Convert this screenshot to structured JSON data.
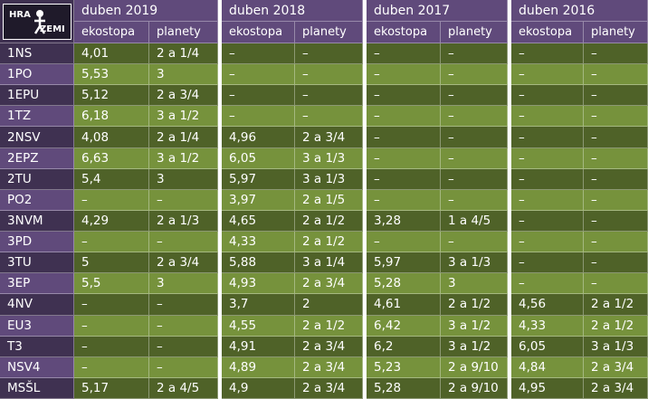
{
  "logo": {
    "top": "HRA",
    "bottom": "ZEMI"
  },
  "table": {
    "groups": [
      {
        "title": "duben 2019",
        "columns": [
          "ekostopa",
          "planety"
        ]
      },
      {
        "title": "duben 2018",
        "columns": [
          "ekostopa",
          "planety"
        ]
      },
      {
        "title": "duben 2017",
        "columns": [
          "ekostopa",
          "planety"
        ]
      },
      {
        "title": "duben 2016",
        "columns": [
          "ekostopa",
          "planety"
        ]
      }
    ],
    "rows": [
      {
        "label": "1NS",
        "cells": [
          "4,01",
          "2 a 1/4",
          "–",
          "–",
          "–",
          "–",
          "–",
          "–"
        ]
      },
      {
        "label": "1PO",
        "cells": [
          "5,53",
          "3",
          "–",
          "–",
          "–",
          "–",
          "–",
          "–"
        ]
      },
      {
        "label": "1EPU",
        "cells": [
          "5,12",
          "2 a 3/4",
          "–",
          "–",
          "–",
          "–",
          "–",
          "–"
        ]
      },
      {
        "label": "1TZ",
        "cells": [
          "6,18",
          "3 a 1/2",
          "–",
          "–",
          "–",
          "–",
          "–",
          "–"
        ]
      },
      {
        "label": "2NSV",
        "cells": [
          "4,08",
          "2 a 1/4",
          "4,96",
          "2 a 3/4",
          "–",
          "–",
          "–",
          "–"
        ]
      },
      {
        "label": "2EPZ",
        "cells": [
          "6,63",
          "3 a 1/2",
          "6,05",
          "3 a 1/3",
          "–",
          "–",
          "–",
          "–"
        ]
      },
      {
        "label": "2TU",
        "cells": [
          "5,4",
          "3",
          "5,97",
          "3 a 1/3",
          "–",
          "–",
          "–",
          "–"
        ]
      },
      {
        "label": "PO2",
        "cells": [
          "–",
          "–",
          "3,97",
          "2 a 1/5",
          "–",
          "–",
          "–",
          "–"
        ]
      },
      {
        "label": "3NVM",
        "cells": [
          "4,29",
          "2 a 1/3",
          "4,65",
          "2 a 1/2",
          "3,28",
          "1 a 4/5",
          "–",
          "–"
        ]
      },
      {
        "label": "3PD",
        "cells": [
          "–",
          "–",
          "4,33",
          "2 a 1/2",
          "–",
          "–",
          "–",
          "–"
        ]
      },
      {
        "label": "3TU",
        "cells": [
          "5",
          "2 a 3/4",
          "5,88",
          "3 a 1/4",
          "5,97",
          "3 a 1/3",
          "–",
          "–"
        ]
      },
      {
        "label": "3EP",
        "cells": [
          "5,5",
          "3",
          "4,93",
          "2 a 3/4",
          "5,28",
          "3",
          "–",
          "–"
        ]
      },
      {
        "label": "4NV",
        "cells": [
          "–",
          "–",
          "3,7",
          "2",
          "4,61",
          "2 a 1/2",
          "4,56",
          "2 a 1/2"
        ]
      },
      {
        "label": "EU3",
        "cells": [
          "–",
          "–",
          "4,55",
          "2 a 1/2",
          "6,42",
          "3 a 1/2",
          "4,33",
          "2 a 1/2"
        ]
      },
      {
        "label": "T3",
        "cells": [
          "–",
          "–",
          "4,91",
          "2 a 3/4",
          "6,2",
          "3 a 1/2",
          "6,05",
          "3 a 1/3"
        ]
      },
      {
        "label": "NSV4",
        "cells": [
          "–",
          "–",
          "4,89",
          "2 a 3/4",
          "5,23",
          "2 a 9/10",
          "4,84",
          "2 a 3/4"
        ]
      },
      {
        "label": "MSŠL",
        "cells": [
          "5,17",
          "2 a 4/5",
          "4,9",
          "2 a 3/4",
          "5,28",
          "2 a 9/10",
          "4,95",
          "2 a 3/4"
        ]
      }
    ]
  }
}
